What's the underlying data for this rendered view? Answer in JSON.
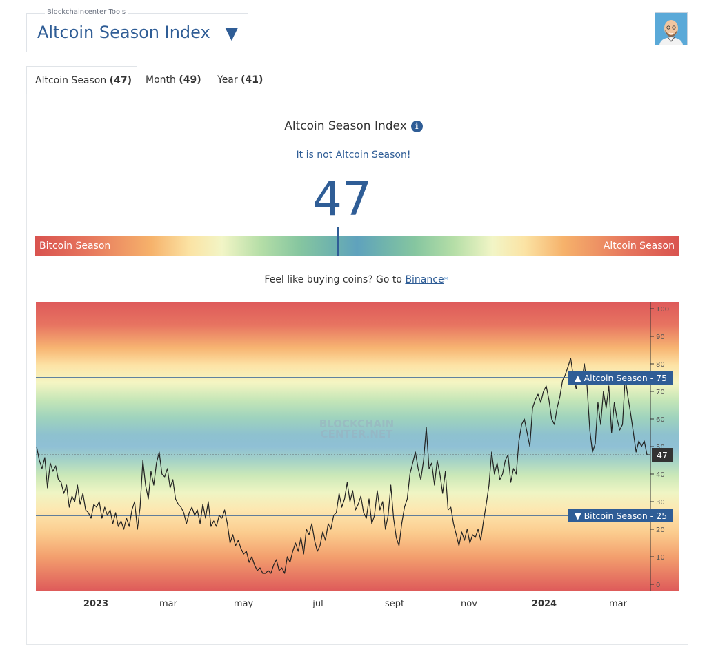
{
  "header": {
    "tool_label": "Blockchaincenter Tools",
    "tool_name": "Altcoin Season Index",
    "dropdown_icon": "triangle-down-icon",
    "avatar_icon": "user-avatar-icon"
  },
  "tabs": [
    {
      "label": "Altcoin Season",
      "value": "(47)"
    },
    {
      "label": "Month",
      "value": "(49)"
    },
    {
      "label": "Year",
      "value": "(41)"
    }
  ],
  "index": {
    "title": "Altcoin Season Index",
    "info_icon": "info-icon",
    "status": "It is not Altcoin Season!",
    "value": "47",
    "gauge_left_label": "Bitcoin Season",
    "gauge_right_label": "Altcoin Season",
    "gauge_fraction": 0.47
  },
  "promo": {
    "text": "Feel like buying coins? Go to",
    "link": "Binance",
    "asterisk": "*"
  },
  "colors": {
    "accent": "#2f5d96",
    "altcoin_season": "#d9534f",
    "bitcoin_season": "#d9534f",
    "neutral": "#5fa2bd"
  },
  "chart_data": {
    "type": "line",
    "watermark": "BLOCKCHAIN CENTER.NET",
    "x_tick_labels": [
      "2023",
      "mar",
      "may",
      "jul",
      "sept",
      "nov",
      "2024",
      "mar"
    ],
    "x_tick_bold": [
      true,
      false,
      false,
      false,
      false,
      false,
      true,
      false
    ],
    "y_ticks": [
      0,
      10,
      20,
      30,
      40,
      50,
      60,
      70,
      80,
      90,
      100
    ],
    "ylim": [
      0,
      100
    ],
    "current_value": "47",
    "thresholds": [
      {
        "label": "▲ Altcoin Season",
        "value": "75",
        "y": 75
      },
      {
        "label": "▼ Bitcoin Season",
        "value": "25",
        "y": 25
      }
    ],
    "series": [
      {
        "values": [
          50,
          45,
          42,
          46,
          35,
          44,
          41,
          43,
          38,
          37,
          33,
          36,
          28,
          32,
          30,
          36,
          29,
          33,
          27,
          26,
          24,
          29,
          28,
          30,
          24,
          28,
          25,
          27,
          22,
          26,
          21,
          23,
          20,
          24,
          21,
          27,
          30,
          20,
          28,
          45,
          36,
          31,
          41,
          36,
          44,
          48,
          40,
          39,
          42,
          35,
          38,
          31,
          29,
          28,
          26,
          22,
          26,
          28,
          25,
          27,
          22,
          29,
          24,
          30,
          21,
          23,
          21,
          25,
          24,
          27,
          22,
          15,
          18,
          14,
          16,
          13,
          11,
          12,
          8,
          10,
          7,
          5,
          6,
          4,
          4,
          5,
          4,
          7,
          9,
          5,
          6,
          4,
          10,
          8,
          12,
          15,
          12,
          17,
          11,
          20,
          18,
          22,
          16,
          12,
          14,
          19,
          16,
          22,
          20,
          25,
          26,
          33,
          28,
          31,
          37,
          30,
          34,
          27,
          29,
          32,
          26,
          24,
          31,
          22,
          25,
          34,
          27,
          30,
          20,
          25,
          36,
          24,
          17,
          14,
          22,
          28,
          31,
          40,
          44,
          48,
          42,
          38,
          45,
          57,
          42,
          44,
          36,
          45,
          40,
          33,
          41,
          27,
          28,
          22,
          18,
          14,
          19,
          16,
          20,
          15,
          18,
          17,
          20,
          16,
          23,
          29,
          36,
          48,
          40,
          44,
          38,
          40,
          45,
          47,
          37,
          42,
          40,
          52,
          58,
          60,
          55,
          50,
          64,
          67,
          69,
          66,
          70,
          72,
          67,
          60,
          58,
          64,
          68,
          74,
          76,
          79,
          82,
          75,
          71,
          77,
          73,
          80,
          72,
          56,
          48,
          51,
          66,
          58,
          70,
          64,
          72,
          55,
          66,
          60,
          56,
          58,
          75,
          68,
          62,
          55,
          48,
          52,
          50,
          52,
          47,
          47
        ]
      }
    ],
    "date_range": [
      "2022-11",
      "2024-04"
    ]
  }
}
